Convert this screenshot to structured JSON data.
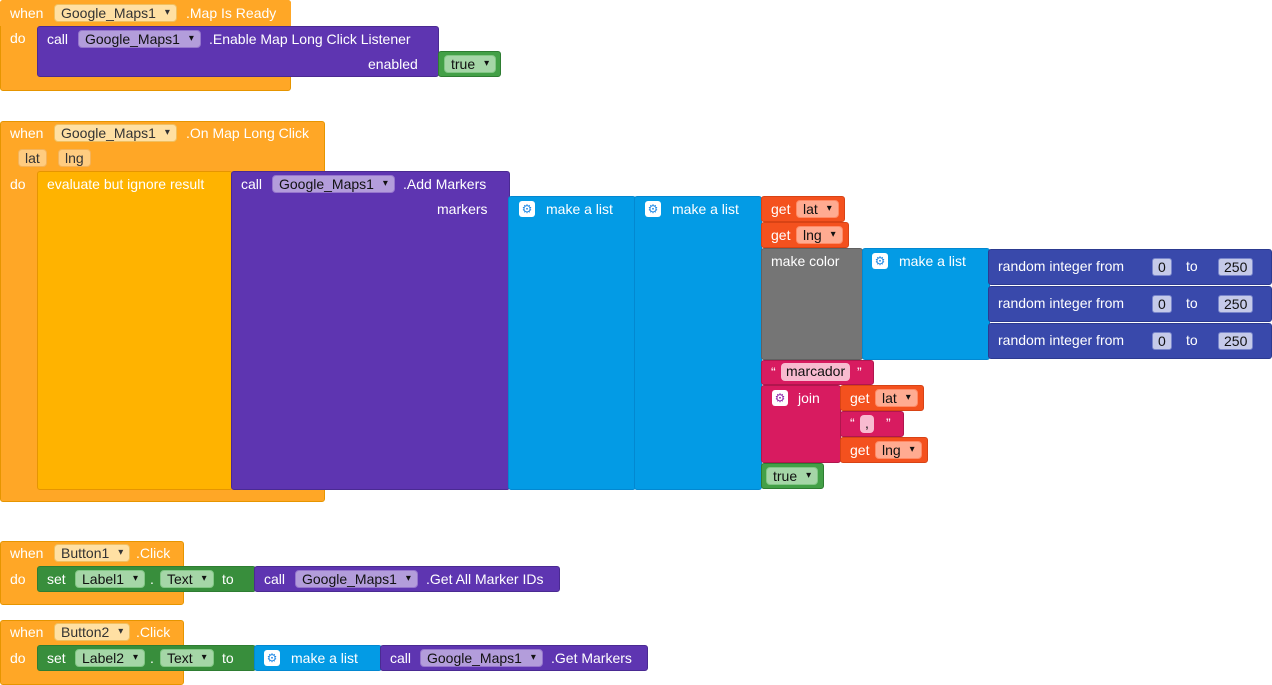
{
  "events": {
    "map_ready": {
      "when": "when",
      "component": "Google_Maps1",
      "event": ".Map Is Ready",
      "do": "do",
      "call": "call",
      "call_component": "Google_Maps1",
      "method": ".Enable Map Long Click Listener",
      "arg_label": "enabled",
      "arg_value": "true"
    },
    "long_click": {
      "when": "when",
      "component": "Google_Maps1",
      "event": ".On Map Long Click",
      "param1": "lat",
      "param2": "lng",
      "do": "do",
      "evaluate": "evaluate but ignore result",
      "call": "call",
      "call_component": "Google_Maps1",
      "method": ".Add Markers",
      "arg_label": "markers",
      "make_a_list": "make a list",
      "get": "get",
      "var_lat": "lat",
      "var_lng": "lng",
      "make_color": "make color",
      "random_from": "random integer from",
      "to": "to",
      "rand1_from": "0",
      "rand1_to": "250",
      "rand2_from": "0",
      "rand2_to": "250",
      "rand3_from": "0",
      "rand3_to": "250",
      "open_quote": "“",
      "close_quote": "”",
      "string_marcador": "marcador",
      "join": "join",
      "string_comma": ",",
      "bool_true": "true"
    },
    "button1": {
      "when": "when",
      "component": "Button1",
      "event": ".Click",
      "do": "do",
      "set": "set",
      "set_component": "Label1",
      "dot": ".",
      "property": "Text",
      "to": "to",
      "call": "call",
      "call_component": "Google_Maps1",
      "method": ".Get All Marker IDs"
    },
    "button2": {
      "when": "when",
      "component": "Button2",
      "event": ".Click",
      "do": "do",
      "set": "set",
      "set_component": "Label2",
      "dot": ".",
      "property": "Text",
      "to": "to",
      "make_a_list": "make a list",
      "call": "call",
      "call_component": "Google_Maps1",
      "method": ".Get Markers"
    }
  },
  "icons": {
    "mutator": "gear-icon",
    "dropdown": "chevron-down-icon"
  },
  "colors": {
    "event": "#ffa726",
    "procedure": "#5e35b1",
    "list": "#039be5",
    "color": "#757575",
    "math": "#3949ab",
    "text": "#d81b60",
    "variable": "#f4511e",
    "logic": "#43a047",
    "setter": "#388e3c"
  }
}
